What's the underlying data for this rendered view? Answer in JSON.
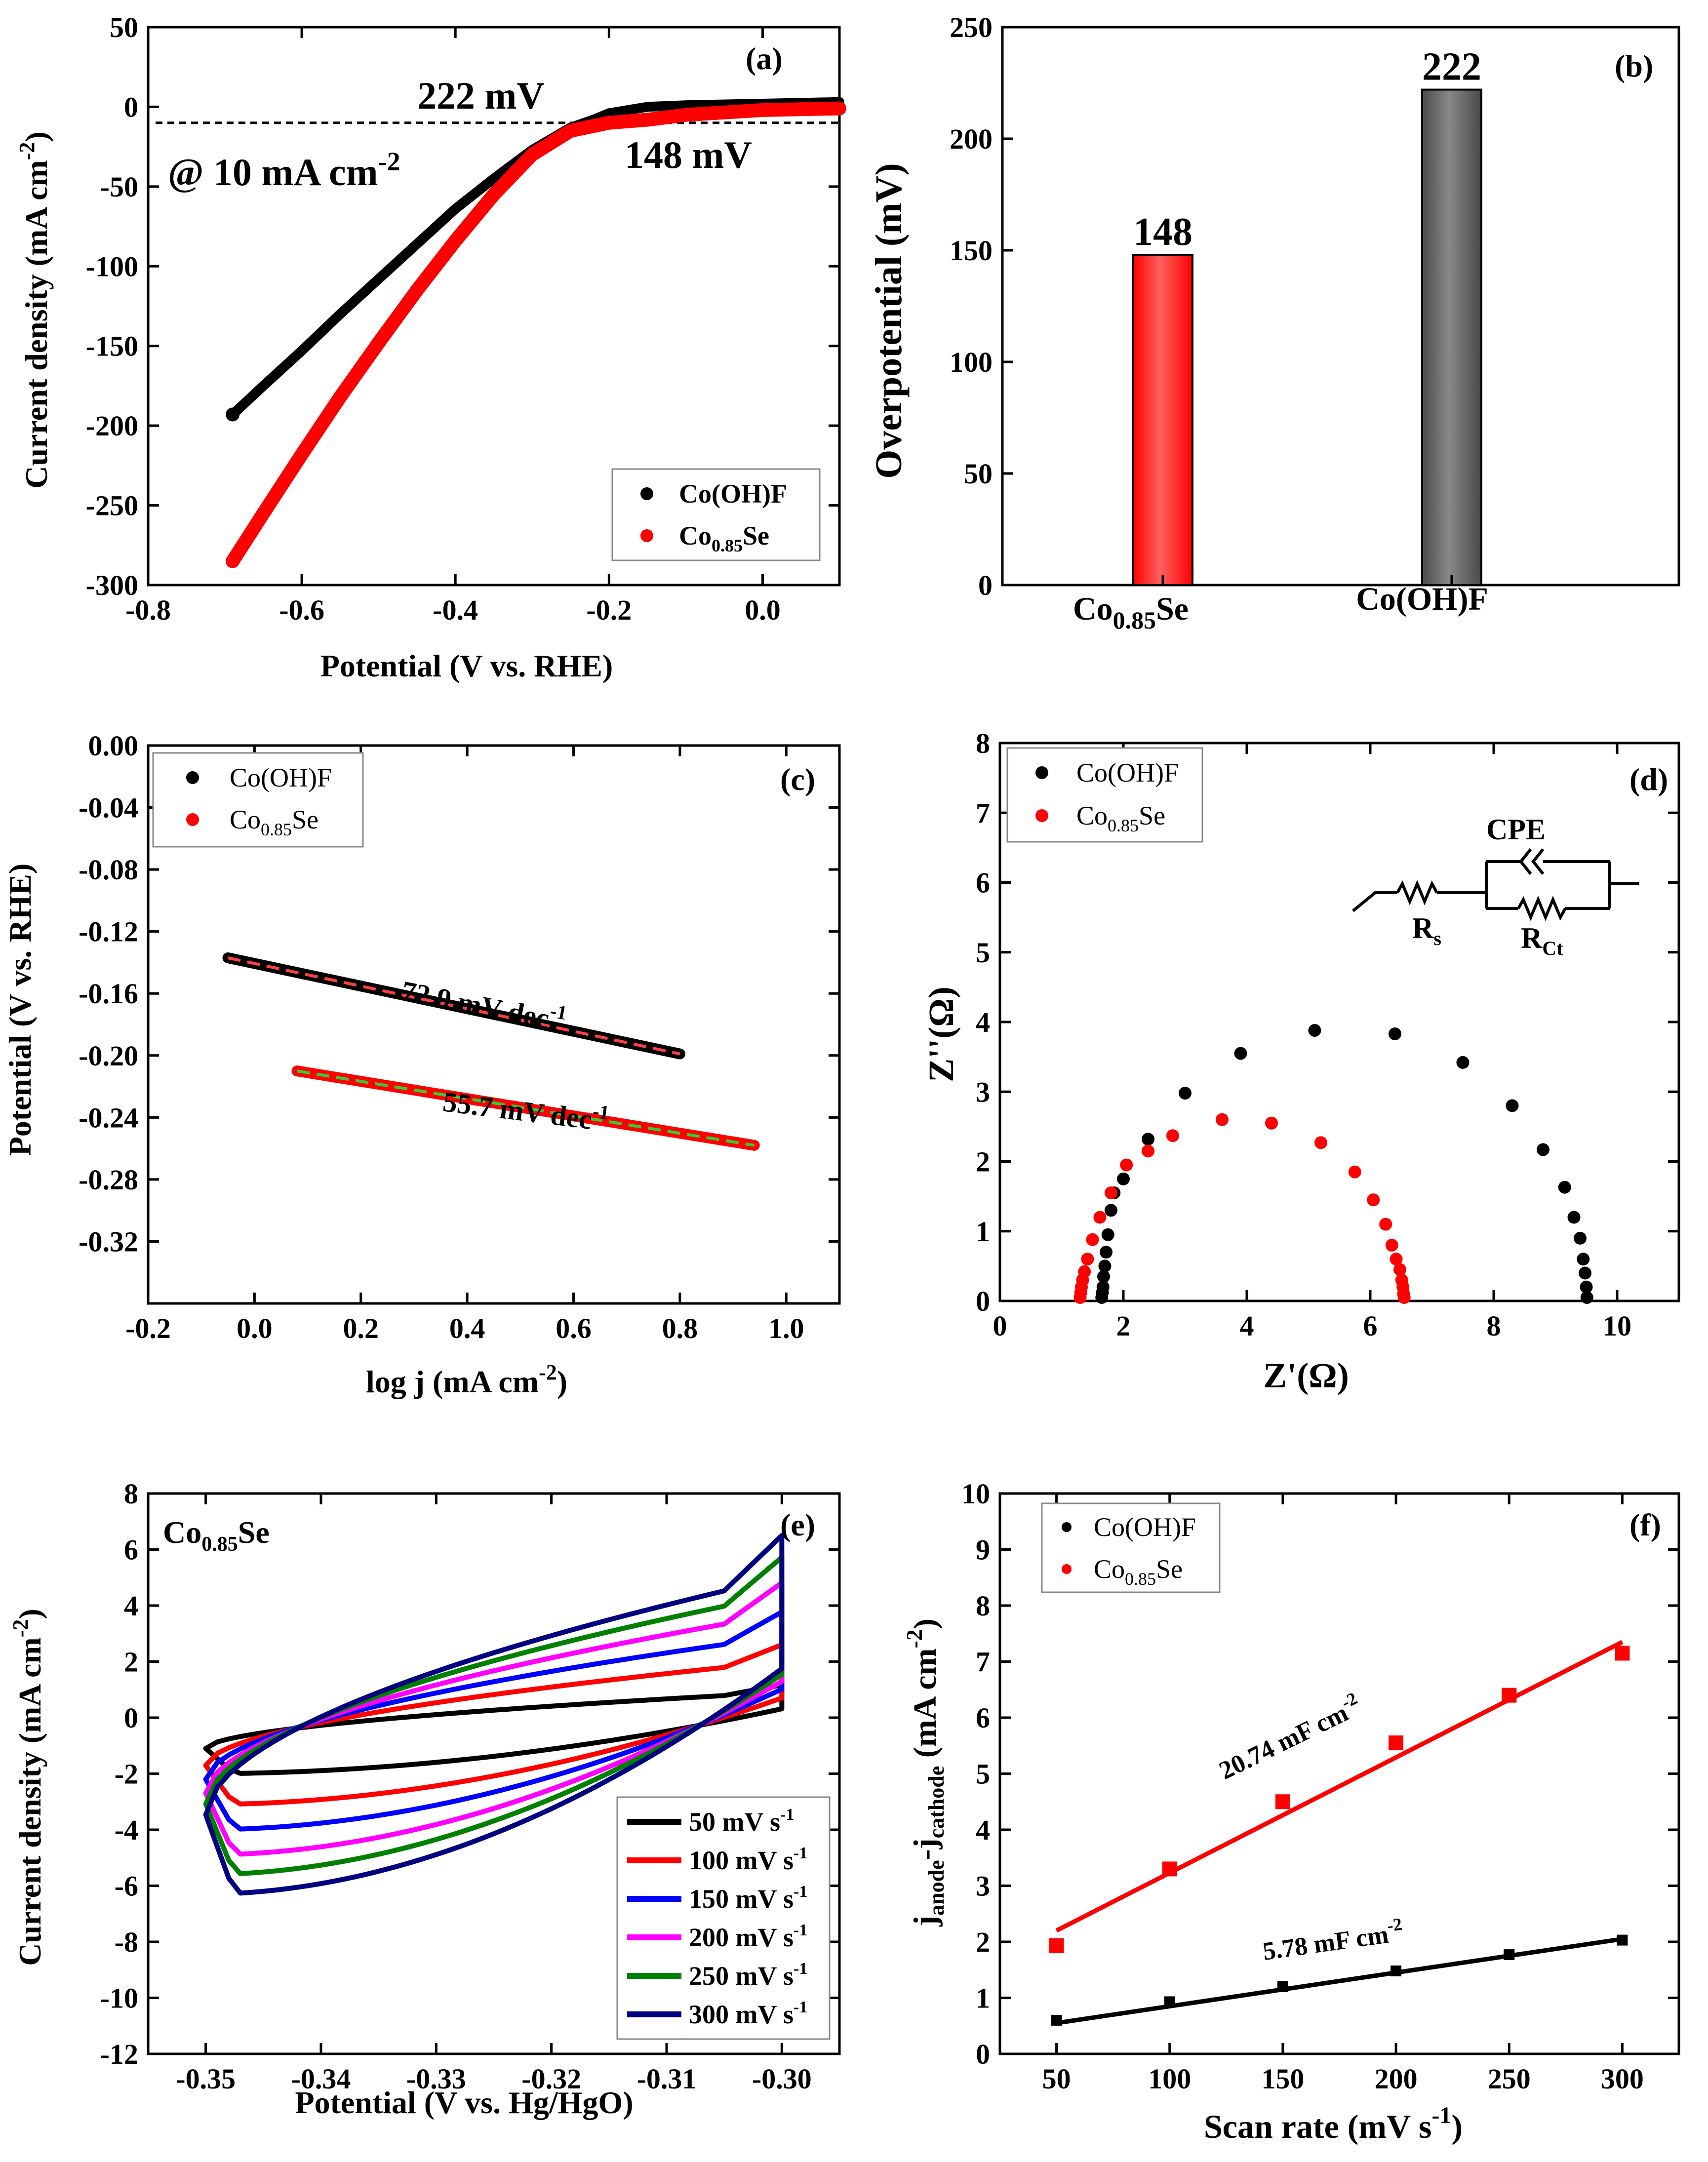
{
  "figure": {
    "panels": [
      {
        "id": "a",
        "panel_label": "(a)",
        "chart_data": {
          "type": "line",
          "title": "",
          "xlabel": "Potential (V vs. RHE)",
          "ylabel": "Current density (mA cm-2)",
          "xlim": [
            -0.8,
            0.1
          ],
          "ylim": [
            -300,
            50
          ],
          "xticks": [
            -0.8,
            -0.6,
            -0.4,
            -0.2,
            0.0
          ],
          "xtick_labels": [
            "-0.8",
            "-0.6",
            "-0.4",
            "-0.2",
            "0.0"
          ],
          "yticks": [
            -300,
            -250,
            -200,
            -150,
            -100,
            -50,
            0,
            50
          ],
          "ytick_labels": [
            "-300",
            "-250",
            "-200",
            "-150",
            "-100",
            "-50",
            "0",
            "50"
          ],
          "reference_line_y": -10,
          "annotations": [
            "222 mV",
            "148 mV",
            "@ 10 mA cm-2"
          ],
          "legend_position": "bottom-right",
          "series": [
            {
              "name": "Co(OH)F",
              "color": "#000000",
              "x": [
                -0.69,
                -0.65,
                -0.6,
                -0.55,
                -0.5,
                -0.45,
                -0.4,
                -0.35,
                -0.3,
                -0.25,
                -0.22,
                -0.2,
                -0.15,
                -0.1,
                0.0,
                0.1
              ],
              "y": [
                -193,
                -175,
                -153,
                -130,
                -108,
                -86,
                -64,
                -45,
                -27,
                -13,
                -8,
                -4,
                0,
                1,
                2,
                3
              ]
            },
            {
              "name": "Co0.85Se",
              "color": "#ff0000",
              "x": [
                -0.69,
                -0.65,
                -0.6,
                -0.55,
                -0.5,
                -0.45,
                -0.4,
                -0.35,
                -0.3,
                -0.25,
                -0.2,
                -0.148,
                -0.1,
                0.0,
                0.1
              ],
              "y": [
                -285,
                -255,
                -218,
                -182,
                -148,
                -115,
                -84,
                -55,
                -30,
                -15,
                -10,
                -8,
                -5,
                -2,
                -1
              ]
            }
          ]
        }
      },
      {
        "id": "b",
        "panel_label": "(b)",
        "chart_data": {
          "type": "bar",
          "title": "",
          "xlabel": "",
          "ylabel": "Overpotential (mV)",
          "ylim": [
            0,
            250
          ],
          "yticks": [
            0,
            50,
            100,
            150,
            200,
            250
          ],
          "ytick_labels": [
            "0",
            "50",
            "100",
            "150",
            "200",
            "250"
          ],
          "categories": [
            "Co0.85Se",
            "Co(OH)F"
          ],
          "values": [
            148,
            222
          ],
          "value_labels": [
            "148",
            "222"
          ],
          "colors": [
            "#ff0000",
            "#4a4a4a"
          ]
        }
      },
      {
        "id": "c",
        "panel_label": "(c)",
        "chart_data": {
          "type": "line",
          "title": "",
          "xlabel": "log j (mA cm-2)",
          "ylabel": "Potential (V vs. RHE)",
          "xlim": [
            -0.2,
            1.1
          ],
          "ylim": [
            -0.36,
            0.0
          ],
          "xticks": [
            -0.2,
            0.0,
            0.2,
            0.4,
            0.6,
            0.8,
            1.0
          ],
          "xtick_labels": [
            "-0.2",
            "0.0",
            "0.2",
            "0.4",
            "0.6",
            "0.8",
            "1.0"
          ],
          "yticks": [
            0.0,
            -0.04,
            -0.08,
            -0.12,
            -0.16,
            -0.2,
            -0.24,
            -0.28,
            -0.32
          ],
          "ytick_labels": [
            "0.00",
            "-0.04",
            "-0.08",
            "-0.12",
            "-0.16",
            "-0.20",
            "-0.24",
            "-0.28",
            "-0.32"
          ],
          "annotations": [
            "72.9 mV dec-1",
            "55.7 mV dec-1"
          ],
          "legend_position": "top-left",
          "series": [
            {
              "name": "Co(OH)F",
              "color": "#000000",
              "fit_color": "#ff4040",
              "x": [
                -0.05,
                0.8
              ],
              "y": [
                -0.137,
                -0.199
              ]
            },
            {
              "name": "Co0.85Se",
              "color": "#ff0000",
              "fit_color": "#33cc33",
              "x": [
                0.08,
                0.94
              ],
              "y": [
                -0.21,
                -0.258
              ]
            }
          ]
        }
      },
      {
        "id": "d",
        "panel_label": "(d)",
        "chart_data": {
          "type": "scatter",
          "title": "",
          "xlabel": "Z'(Ω)",
          "ylabel": "Z''(Ω)",
          "xlim": [
            0,
            11
          ],
          "ylim": [
            0,
            8
          ],
          "xticks": [
            0,
            2,
            4,
            6,
            8,
            10
          ],
          "xtick_labels": [
            "0",
            "2",
            "4",
            "6",
            "8",
            "10"
          ],
          "yticks": [
            0,
            1,
            2,
            3,
            4,
            5,
            6,
            7,
            8
          ],
          "ytick_labels": [
            "0",
            "1",
            "2",
            "3",
            "4",
            "5",
            "6",
            "7",
            "8"
          ],
          "legend_position": "top-left",
          "circuit_labels": {
            "cpe": "CPE",
            "rs": "R",
            "rs_sub": "s",
            "rct": "R",
            "rct_sub": "Ct"
          },
          "series": [
            {
              "name": "Co(OH)F",
              "color": "#000000",
              "x": [
                1.65,
                1.66,
                1.67,
                1.68,
                1.7,
                1.72,
                1.75,
                1.8,
                1.85,
                2.0,
                2.4,
                3.0,
                3.9,
                5.1,
                6.4,
                7.5,
                8.3,
                8.8,
                9.15,
                9.3,
                9.4,
                9.45,
                9.48,
                9.5,
                9.51
              ],
              "y": [
                0.05,
                0.12,
                0.2,
                0.35,
                0.5,
                0.7,
                0.95,
                1.3,
                1.55,
                1.75,
                2.32,
                2.98,
                3.55,
                3.88,
                3.83,
                3.42,
                2.8,
                2.17,
                1.63,
                1.2,
                0.9,
                0.6,
                0.4,
                0.2,
                0.05
              ]
            },
            {
              "name": "Co0.85Se",
              "color": "#ff0000",
              "x": [
                1.3,
                1.31,
                1.32,
                1.34,
                1.37,
                1.42,
                1.5,
                1.62,
                1.8,
                2.05,
                2.4,
                2.8,
                3.6,
                4.4,
                5.2,
                5.75,
                6.05,
                6.25,
                6.35,
                6.42,
                6.48,
                6.51,
                6.53,
                6.54,
                6.55
              ],
              "y": [
                0.05,
                0.12,
                0.2,
                0.3,
                0.42,
                0.6,
                0.88,
                1.2,
                1.55,
                1.95,
                2.15,
                2.37,
                2.6,
                2.55,
                2.27,
                1.85,
                1.45,
                1.1,
                0.8,
                0.6,
                0.45,
                0.3,
                0.2,
                0.1,
                0.05
              ]
            }
          ]
        }
      },
      {
        "id": "e",
        "panel_label": "(e)",
        "sample_label": "Co0.85Se",
        "chart_data": {
          "type": "line",
          "title": "",
          "xlabel": "Potential (V vs. Hg/HgO)",
          "ylabel": "Current density (mA cm-2)",
          "xlim": [
            -0.355,
            -0.295
          ],
          "ylim": [
            -12,
            8
          ],
          "xticks": [
            -0.35,
            -0.34,
            -0.33,
            -0.32,
            -0.31,
            -0.3
          ],
          "xtick_labels": [
            "-0.35",
            "-0.34",
            "-0.33",
            "-0.32",
            "-0.31",
            "-0.30"
          ],
          "yticks": [
            -12,
            -10,
            -8,
            -6,
            -4,
            -2,
            0,
            2,
            4,
            6,
            8
          ],
          "ytick_labels": [
            "-12",
            "-10",
            "-8",
            "-6",
            "-4",
            "-2",
            "0",
            "2",
            "4",
            "6",
            "8"
          ],
          "legend_position": "bottom-right",
          "series": [
            {
              "name": "50 mV s-1",
              "color": "#000000",
              "upper_at_minus_0_31": 0.9,
              "lower_at_minus_0_35": -1.9,
              "vertex_high": 0.9,
              "vertex_low": -2.0
            },
            {
              "name": "100 mV s-1",
              "color": "#ff0000",
              "upper_at_minus_0_31": 1.9,
              "lower_at_minus_0_35": -3.0,
              "vertex_high": 2.0,
              "vertex_low": -3.1
            },
            {
              "name": "150 mV s-1",
              "color": "#0000ff",
              "upper_at_minus_0_31": 2.8,
              "lower_at_minus_0_35": -3.9,
              "vertex_high": 2.9,
              "vertex_low": -4.0
            },
            {
              "name": "200 mV s-1",
              "color": "#ff00ff",
              "upper_at_minus_0_31": 3.5,
              "lower_at_minus_0_35": -4.7,
              "vertex_high": 3.7,
              "vertex_low": -4.9
            },
            {
              "name": "250 mV s-1",
              "color": "#008000",
              "upper_at_minus_0_31": 4.2,
              "lower_at_minus_0_35": -5.5,
              "vertex_high": 4.4,
              "vertex_low": -5.6
            },
            {
              "name": "300 mV s-1",
              "color": "#000080",
              "upper_at_minus_0_31": 4.8,
              "lower_at_minus_0_35": -6.2,
              "vertex_high": 5.0,
              "vertex_low": -6.3
            }
          ]
        }
      },
      {
        "id": "f",
        "panel_label": "(f)",
        "chart_data": {
          "type": "scatter",
          "title": "",
          "xlabel": "Scan rate (mV s-1)",
          "ylabel": "janode-jcathode (mA cm-2)",
          "xlim": [
            25,
            325
          ],
          "ylim": [
            0,
            10
          ],
          "xticks": [
            50,
            100,
            150,
            200,
            250,
            300
          ],
          "xtick_labels": [
            "50",
            "100",
            "150",
            "200",
            "250",
            "300"
          ],
          "yticks": [
            0,
            1,
            2,
            3,
            4,
            5,
            6,
            7,
            8,
            9,
            10
          ],
          "ytick_labels": [
            "0",
            "1",
            "2",
            "3",
            "4",
            "5",
            "6",
            "7",
            "8",
            "9",
            "10"
          ],
          "annotations": [
            "20.74 mF cm-2",
            "5.78 mF cm-2"
          ],
          "legend_position": "top-left",
          "series": [
            {
              "name": "Co(OH)F",
              "color": "#000000",
              "x": [
                50,
                100,
                150,
                200,
                250,
                300
              ],
              "y": [
                0.6,
                0.93,
                1.2,
                1.48,
                1.77,
                2.03
              ],
              "fit": [
                0.55,
                2.05
              ]
            },
            {
              "name": "Co0.85Se",
              "color": "#ff0000",
              "x": [
                50,
                100,
                150,
                200,
                250,
                300
              ],
              "y": [
                1.93,
                3.3,
                4.5,
                5.55,
                6.4,
                7.15
              ],
              "fit": [
                2.2,
                7.35
              ]
            }
          ]
        }
      }
    ]
  }
}
